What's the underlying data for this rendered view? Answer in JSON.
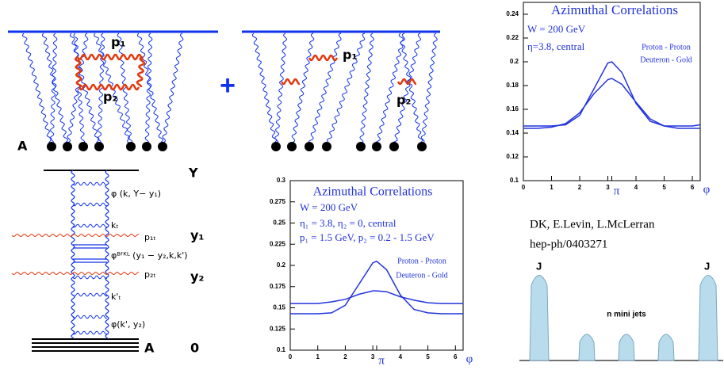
{
  "diagram_left": {
    "p1": "p₁",
    "p2": "p₂",
    "plus": "+",
    "nucleus": "A"
  },
  "diagram_right": {
    "p1": "p₁",
    "p2": "p₂"
  },
  "ladder": {
    "labels": [
      "Y",
      "φ (k, Y− y₁)",
      "kₜ",
      "p₁ₜ",
      "y₁",
      "φᴮᶠᴷᴸ (y₁ − y₂,k,k')",
      "p₂ₜ",
      "y₂",
      "k'ₜ",
      "φ(k', y₂)",
      "A",
      "0"
    ]
  },
  "reference": {
    "authors": "DK, E.Levin, L.McLerran",
    "preprint": "hep-ph/0403271"
  },
  "jets": {
    "left": "J",
    "right": "J",
    "middle": "n  mini jets"
  },
  "chart_data": [
    {
      "type": "line",
      "title": "Azimuthal Correlations",
      "annotations": [
        "W = 200 GeV",
        "η=3.8, central"
      ],
      "xlabel": "φ",
      "x": [
        0,
        0.5,
        1,
        1.5,
        2,
        2.5,
        3,
        3.14,
        3.5,
        4,
        4.5,
        5,
        5.5,
        6,
        6.28
      ],
      "series": [
        {
          "name": "Proton - Proton",
          "color": "#2233dd",
          "values": [
            0.146,
            0.146,
            0.146,
            0.147,
            0.155,
            0.177,
            0.199,
            0.2,
            0.191,
            0.165,
            0.15,
            0.146,
            0.146,
            0.146,
            0.147
          ]
        },
        {
          "name": "Deuteron - Gold",
          "color": "#2233dd",
          "values": [
            0.144,
            0.144,
            0.145,
            0.148,
            0.157,
            0.173,
            0.185,
            0.186,
            0.181,
            0.166,
            0.152,
            0.146,
            0.144,
            0.144,
            0.144
          ]
        }
      ],
      "xlim": [
        0,
        6.28
      ],
      "ylim": [
        0.1,
        0.25
      ],
      "xticks": [
        0,
        1,
        2,
        3,
        4,
        5,
        6,
        {
          "value": 3.14,
          "label": "π"
        }
      ],
      "yticks": [
        0.1,
        0.12,
        0.14,
        0.16,
        0.18,
        0.2,
        0.22,
        0.24
      ]
    },
    {
      "type": "line",
      "title": "Azimuthal Correlations",
      "annotations": [
        "W = 200 GeV",
        "η₁ = 3.8, η₂ = 0, central",
        "p₁ = 1.5  GeV, p₂ = 0.2 - 1.5 GeV"
      ],
      "xlabel": "φ",
      "x": [
        0,
        0.5,
        1,
        1.5,
        2,
        2.5,
        3,
        3.14,
        3.5,
        4,
        4.5,
        5,
        5.5,
        6,
        6.28
      ],
      "series": [
        {
          "name": "Proton - Proton",
          "color": "#2233dd",
          "values": [
            0.143,
            0.143,
            0.143,
            0.144,
            0.153,
            0.178,
            0.203,
            0.205,
            0.195,
            0.165,
            0.148,
            0.144,
            0.143,
            0.143,
            0.143
          ]
        },
        {
          "name": "Deuteron - Gold",
          "color": "#2233dd",
          "values": [
            0.155,
            0.155,
            0.155,
            0.157,
            0.16,
            0.166,
            0.17,
            0.17,
            0.169,
            0.163,
            0.159,
            0.156,
            0.155,
            0.155,
            0.155
          ]
        }
      ],
      "xlim": [
        0,
        6.28
      ],
      "ylim": [
        0.1,
        0.3
      ],
      "xticks": [
        0,
        1,
        2,
        3,
        4,
        5,
        6,
        {
          "value": 3.14,
          "label": "π"
        }
      ],
      "yticks": [
        0.1,
        0.125,
        0.15,
        0.175,
        0.2,
        0.225,
        0.25,
        0.275,
        0.3
      ]
    }
  ]
}
